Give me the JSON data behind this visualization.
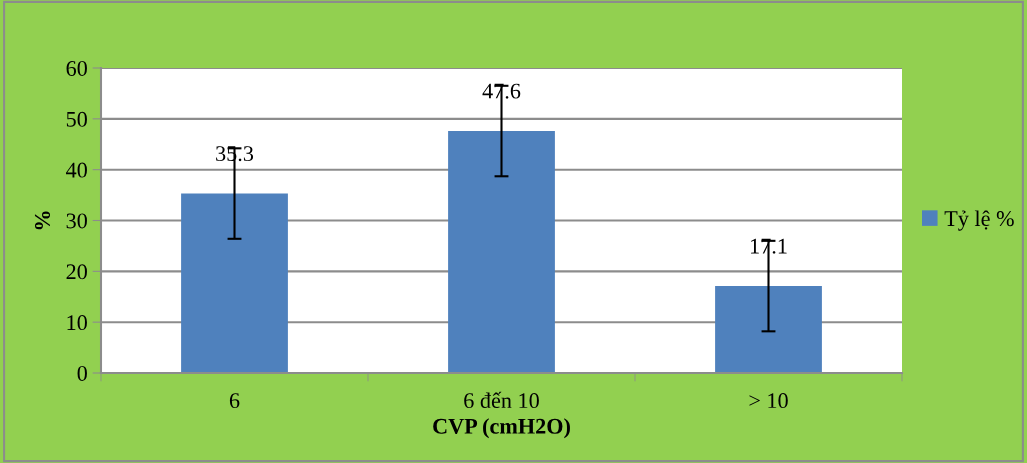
{
  "chart_data": {
    "type": "bar",
    "xlabel": "CVP (cmH2O)",
    "ylabel": "%",
    "categories": [
      "6",
      "6 đến 10",
      "> 10"
    ],
    "series": [
      {
        "name": "Tỷ lệ %",
        "color": "#4f81bd",
        "values": [
          35.3,
          47.6,
          17.1
        ],
        "errors": [
          8.9,
          8.9,
          8.9
        ]
      }
    ],
    "ylim": [
      0,
      60
    ],
    "yticks": [
      0,
      10,
      20,
      30,
      40,
      50,
      60
    ],
    "grid": "y",
    "legend": "right",
    "data_labels": true
  }
}
